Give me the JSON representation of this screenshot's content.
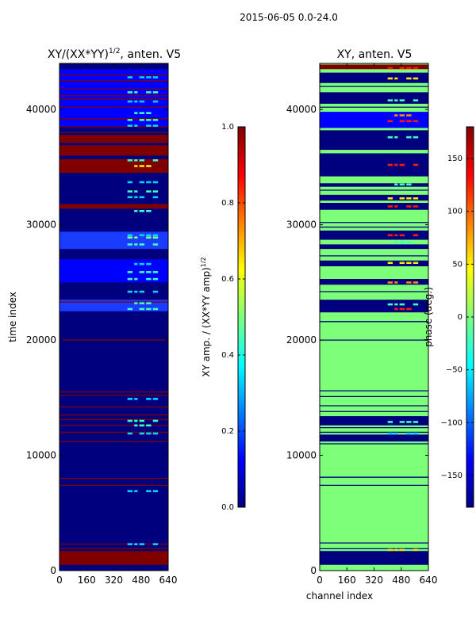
{
  "suptitle": "2015-06-05 0.0-24.0",
  "palette": {
    "navy": "#00007f",
    "blue": "#0000ff",
    "royal": "#1a3cff",
    "cyan": "#00d4ff",
    "aqua": "#3dffc0",
    "green": "#7dff7a",
    "yellow": "#ffe600",
    "orange": "#ff8a00",
    "red": "#ff1a00",
    "darkred": "#800000"
  },
  "chart_data": [
    {
      "type": "heatmap",
      "title_main": "XY/(XX*YY)",
      "title_sup": "1/2",
      "title_tail": ", anten. V5",
      "xlabel": "",
      "ylabel": "time index",
      "xlim": [
        0,
        640
      ],
      "ylim": [
        0,
        44000
      ],
      "xticks": [
        0,
        160,
        320,
        480,
        640
      ],
      "yticks": [
        0,
        10000,
        20000,
        30000,
        40000
      ],
      "background": "navy",
      "bands": [
        {
          "y0": 0,
          "y1": 500,
          "color": "navy"
        },
        {
          "y0": 500,
          "y1": 1700,
          "color": "darkred"
        },
        {
          "y0": 34500,
          "y1": 35700,
          "color": "darkred"
        },
        {
          "y0": 36000,
          "y1": 36900,
          "color": "darkred"
        },
        {
          "y0": 37100,
          "y1": 37800,
          "color": "darkred"
        },
        {
          "y0": 31400,
          "y1": 31800,
          "color": "darkred"
        },
        {
          "y0": 33200,
          "y1": 33600,
          "color": "navy"
        },
        {
          "y0": 22500,
          "y1": 23500,
          "color": "royal"
        },
        {
          "y0": 27900,
          "y1": 29400,
          "color": "royal"
        },
        {
          "y0": 25000,
          "y1": 27000,
          "color": "blue"
        },
        {
          "y0": 38500,
          "y1": 43500,
          "color": "blue"
        }
      ],
      "lines": [
        1900,
        2300,
        7400,
        8000,
        11200,
        12000,
        12600,
        13100,
        13500,
        14200,
        15200,
        15500,
        20000,
        23300,
        31600,
        38000,
        38500,
        39200,
        40200,
        40900,
        41200,
        41800,
        42500,
        43000
      ],
      "line_color": "darkred",
      "spots": [
        {
          "y": 2300,
          "color": "cyan"
        },
        {
          "y": 6900,
          "color": "cyan"
        },
        {
          "y": 11900,
          "color": "cyan"
        },
        {
          "y": 12600,
          "color": "aqua"
        },
        {
          "y": 13000,
          "color": "aqua"
        },
        {
          "y": 14900,
          "color": "cyan"
        },
        {
          "y": 22700,
          "color": "aqua"
        },
        {
          "y": 23200,
          "color": "aqua"
        },
        {
          "y": 24200,
          "color": "cyan"
        },
        {
          "y": 25300,
          "color": "aqua"
        },
        {
          "y": 25900,
          "color": "aqua"
        },
        {
          "y": 26600,
          "color": "cyan"
        },
        {
          "y": 28300,
          "color": "aqua"
        },
        {
          "y": 28900,
          "color": "green"
        },
        {
          "y": 29100,
          "color": "cyan"
        },
        {
          "y": 31200,
          "color": "aqua"
        },
        {
          "y": 32400,
          "color": "cyan"
        },
        {
          "y": 32900,
          "color": "aqua"
        },
        {
          "y": 33700,
          "color": "cyan"
        },
        {
          "y": 35100,
          "color": "yellow"
        },
        {
          "y": 35600,
          "color": "aqua"
        },
        {
          "y": 38600,
          "color": "cyan"
        },
        {
          "y": 39100,
          "color": "aqua"
        },
        {
          "y": 39700,
          "color": "aqua"
        },
        {
          "y": 40700,
          "color": "cyan"
        },
        {
          "y": 41500,
          "color": "aqua"
        },
        {
          "y": 42800,
          "color": "cyan"
        }
      ],
      "colorbar": {
        "label_main": "XY amp. / (XX*YY amp)",
        "label_sup": "1/2",
        "min": 0.0,
        "max": 1.0,
        "ticks": [
          0.0,
          0.2,
          0.4,
          0.6,
          0.8,
          1.0
        ],
        "tick_labels": [
          "0.0",
          "0.2",
          "0.4",
          "0.6",
          "0.8",
          "1.0"
        ]
      }
    },
    {
      "type": "heatmap",
      "title_main": "XY, anten. V5",
      "title_sup": "",
      "title_tail": "",
      "xlabel": "channel index",
      "ylabel": "",
      "xlim": [
        0,
        640
      ],
      "ylim": [
        0,
        44000
      ],
      "xticks": [
        0,
        160,
        320,
        480,
        640
      ],
      "yticks": [
        0,
        10000,
        20000,
        30000,
        40000
      ],
      "background": "green",
      "bands": [
        {
          "y0": 500,
          "y1": 1700,
          "color": "navy"
        },
        {
          "y0": 11200,
          "y1": 11800,
          "color": "navy"
        },
        {
          "y0": 12600,
          "y1": 13400,
          "color": "navy"
        },
        {
          "y0": 22400,
          "y1": 23500,
          "color": "navy"
        },
        {
          "y0": 24800,
          "y1": 25300,
          "color": "navy"
        },
        {
          "y0": 26400,
          "y1": 26900,
          "color": "navy"
        },
        {
          "y0": 27900,
          "y1": 28300,
          "color": "navy"
        },
        {
          "y0": 28700,
          "y1": 29500,
          "color": "navy"
        },
        {
          "y0": 31300,
          "y1": 31900,
          "color": "navy"
        },
        {
          "y0": 32100,
          "y1": 32600,
          "color": "navy"
        },
        {
          "y0": 33300,
          "y1": 33600,
          "color": "navy"
        },
        {
          "y0": 34200,
          "y1": 36200,
          "color": "navy"
        },
        {
          "y0": 36500,
          "y1": 38200,
          "color": "navy"
        },
        {
          "y0": 38400,
          "y1": 39800,
          "color": "blue"
        },
        {
          "y0": 40500,
          "y1": 41500,
          "color": "navy"
        },
        {
          "y0": 42300,
          "y1": 43200,
          "color": "navy"
        },
        {
          "y0": 43500,
          "y1": 43900,
          "color": "darkred"
        }
      ],
      "lines": [
        1900,
        2400,
        7400,
        8100,
        11000,
        12000,
        12400,
        13800,
        14300,
        15100,
        15600,
        20000,
        21600,
        24200,
        27300,
        29800,
        30200,
        33000,
        37000,
        40200,
        42000
      ],
      "line_color": "navy",
      "spots": [
        {
          "y": 1800,
          "color": "yellow"
        },
        {
          "y": 11900,
          "color": "cyan"
        },
        {
          "y": 12900,
          "color": "aqua"
        },
        {
          "y": 22700,
          "color": "red"
        },
        {
          "y": 23100,
          "color": "aqua"
        },
        {
          "y": 25000,
          "color": "orange"
        },
        {
          "y": 26700,
          "color": "yellow"
        },
        {
          "y": 28500,
          "color": "aqua"
        },
        {
          "y": 29100,
          "color": "red"
        },
        {
          "y": 31600,
          "color": "red"
        },
        {
          "y": 32300,
          "color": "yellow"
        },
        {
          "y": 33500,
          "color": "aqua"
        },
        {
          "y": 35200,
          "color": "red"
        },
        {
          "y": 37600,
          "color": "aqua"
        },
        {
          "y": 39000,
          "color": "red"
        },
        {
          "y": 39500,
          "color": "orange"
        },
        {
          "y": 40800,
          "color": "aqua"
        },
        {
          "y": 42700,
          "color": "yellow"
        },
        {
          "y": 43600,
          "color": "red"
        }
      ],
      "colorbar": {
        "label_main": "phase (deg.)",
        "label_sup": "",
        "min": -180,
        "max": 180,
        "ticks": [
          -150,
          -100,
          -50,
          0,
          50,
          100,
          150
        ],
        "tick_labels": [
          "−150",
          "−100",
          "−50",
          "0",
          "50",
          "100",
          "150"
        ]
      }
    }
  ]
}
